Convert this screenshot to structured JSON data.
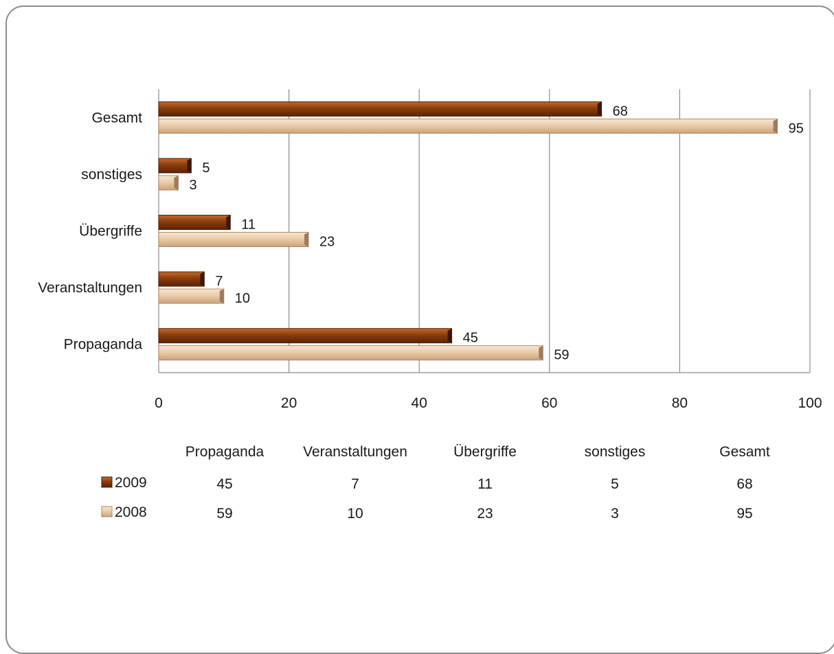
{
  "chart_data": {
    "type": "bar",
    "orientation": "horizontal",
    "categories": [
      "Propaganda",
      "Veranstaltungen",
      "Übergriffe",
      "sonstiges",
      "Gesamt"
    ],
    "series": [
      {
        "name": "2009",
        "values": [
          45,
          7,
          11,
          5,
          68
        ],
        "color": "#8b3d0c"
      },
      {
        "name": "2008",
        "values": [
          59,
          10,
          23,
          3,
          95
        ],
        "color": "#e8c9a6"
      }
    ],
    "xlim": [
      0,
      100
    ],
    "x_ticks": [
      "0",
      "20",
      "40",
      "60",
      "80",
      "100"
    ],
    "grid": true,
    "data_table": true
  }
}
